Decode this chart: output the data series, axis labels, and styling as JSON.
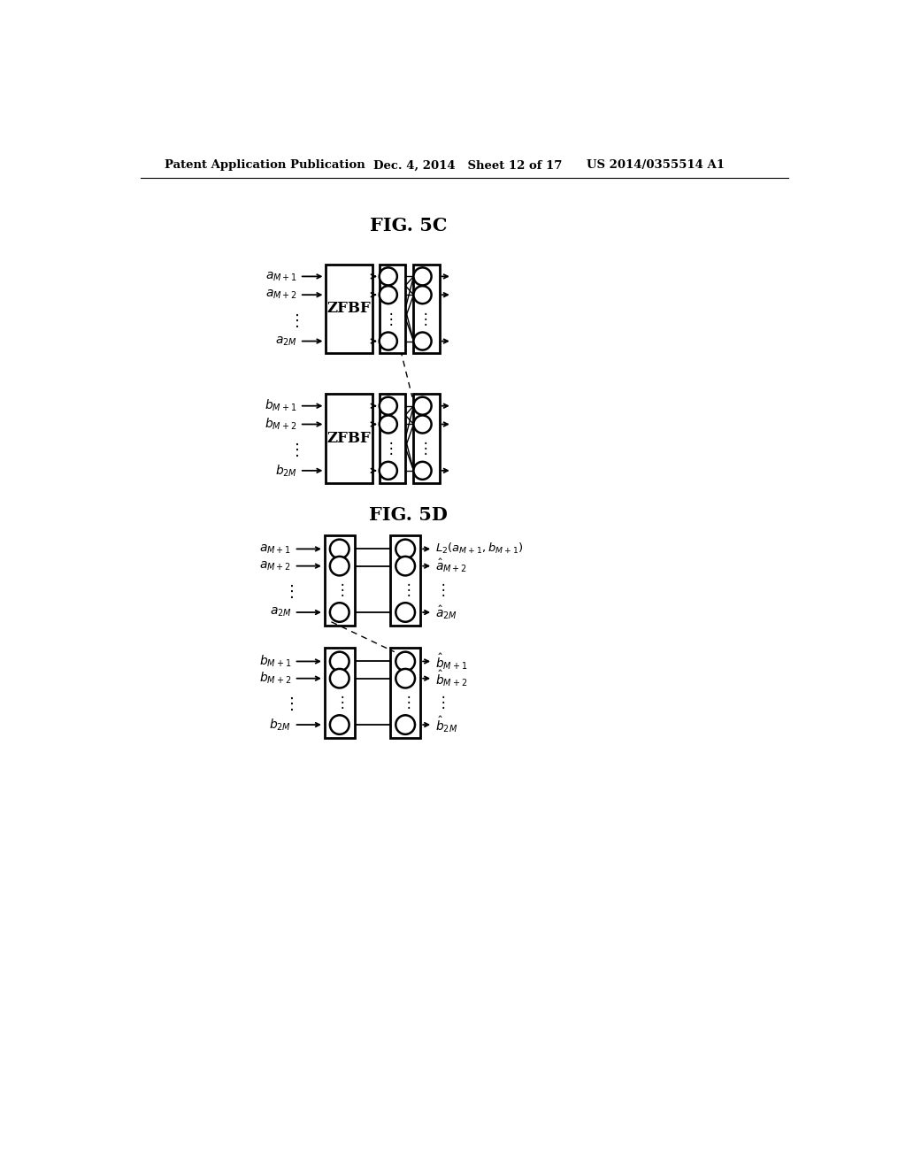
{
  "bg_color": "#ffffff",
  "header_left": "Patent Application Publication",
  "header_mid": "Dec. 4, 2014   Sheet 12 of 17",
  "header_right": "US 2014/0355514 A1",
  "fig5c_title": "FIG. 5C",
  "fig5d_title": "FIG. 5D"
}
